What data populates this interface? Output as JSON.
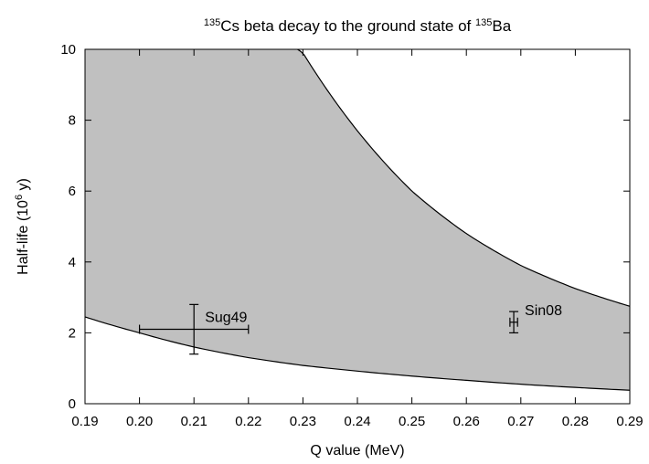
{
  "chart_data": {
    "type": "scatter",
    "title": {
      "parts": [
        {
          "text": "135",
          "sup": true
        },
        {
          "text": "Cs beta decay to the ground state of ",
          "sup": false
        },
        {
          "text": "135",
          "sup": true
        },
        {
          "text": "Ba",
          "sup": false
        }
      ]
    },
    "xlabel": "Q value (MeV)",
    "ylabel": {
      "parts": [
        {
          "text": "Half-life (10",
          "sup": false
        },
        {
          "text": "6",
          "sup": true
        },
        {
          "text": " y)",
          "sup": false
        }
      ]
    },
    "xlim": [
      0.19,
      0.29
    ],
    "ylim": [
      0,
      10
    ],
    "xticks": [
      "0.19",
      "0.20",
      "0.21",
      "0.22",
      "0.23",
      "0.24",
      "0.25",
      "0.26",
      "0.27",
      "0.28",
      "0.29"
    ],
    "yticks": [
      "0",
      "2",
      "4",
      "6",
      "8",
      "10"
    ],
    "grid": false,
    "band": {
      "fill": "#c0c0c0",
      "lower_curve": {
        "x": [
          0.19,
          0.2,
          0.21,
          0.22,
          0.23,
          0.24,
          0.25,
          0.26,
          0.27,
          0.28,
          0.29
        ],
        "y": [
          2.45,
          2.0,
          1.6,
          1.3,
          1.08,
          0.92,
          0.78,
          0.66,
          0.55,
          0.46,
          0.38
        ]
      },
      "upper_curve": {
        "x": [
          0.229,
          0.23,
          0.24,
          0.25,
          0.26,
          0.27,
          0.28,
          0.29
        ],
        "y": [
          10.0,
          9.9,
          7.7,
          6.0,
          4.8,
          3.9,
          3.25,
          2.75
        ]
      }
    },
    "points": [
      {
        "label": "Sug49",
        "x": 0.21,
        "y": 2.1,
        "xerr": 0.01,
        "yerr": 0.7
      },
      {
        "label": "Sin08",
        "x": 0.2687,
        "y": 2.3,
        "xerr": 0.0007,
        "yerr": 0.3
      }
    ]
  }
}
